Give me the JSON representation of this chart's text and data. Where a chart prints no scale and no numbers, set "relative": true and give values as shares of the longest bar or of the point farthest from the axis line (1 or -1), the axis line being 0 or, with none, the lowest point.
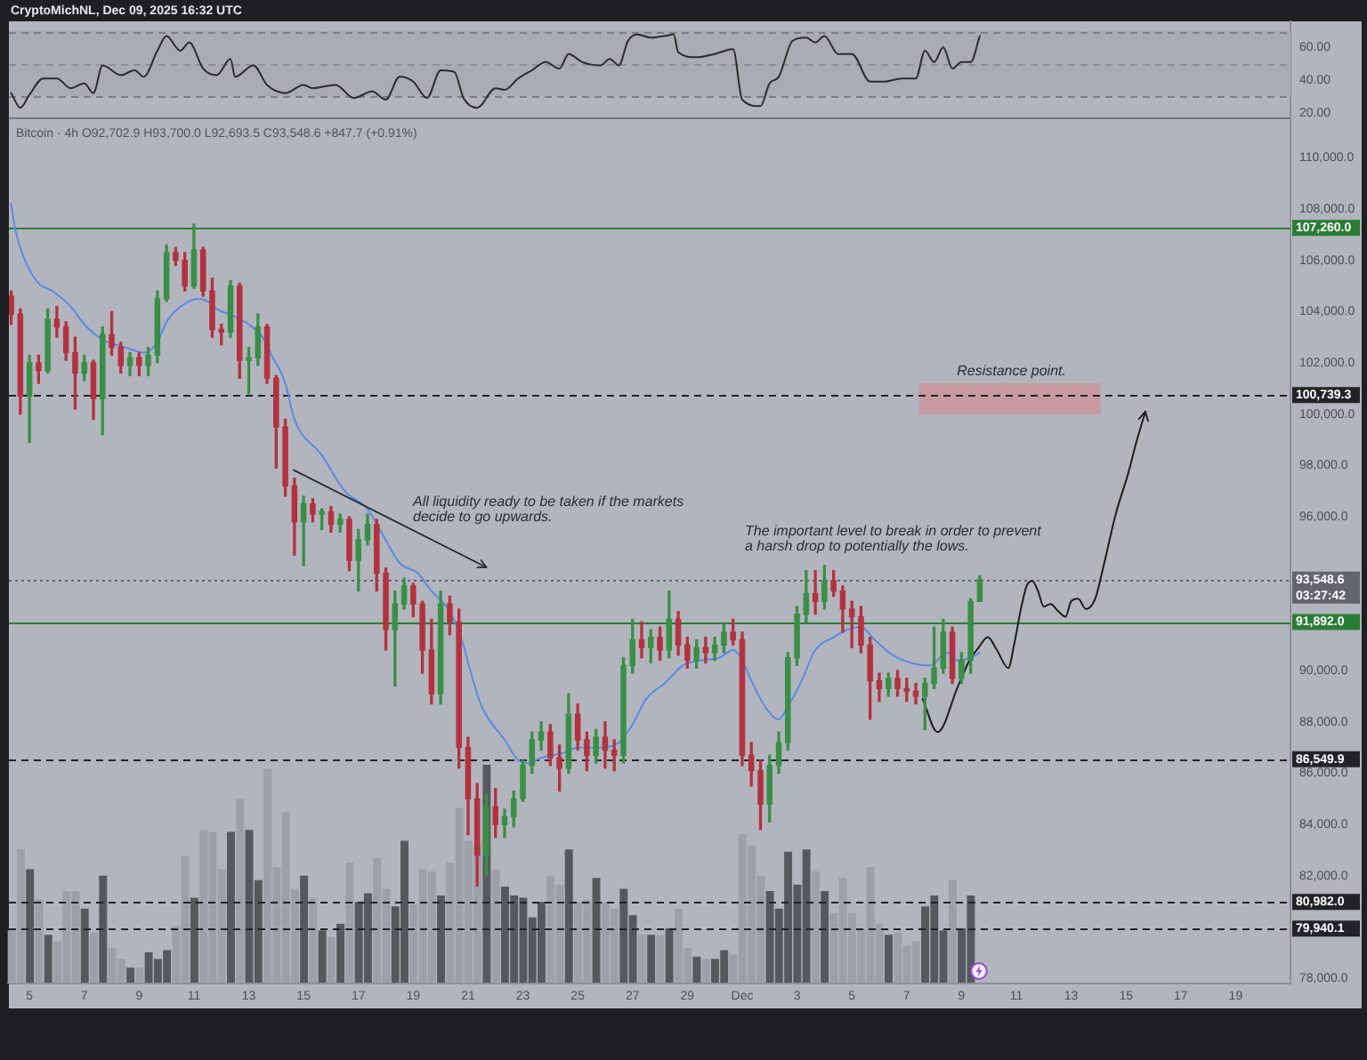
{
  "chart_data": [
    {
      "type": "line",
      "title": "CryptoMichNL, Dec 09, 2025 16:32 UTC",
      "tick_labels": "y",
      "xlim": [
        "2025-11-04T06:00",
        "2025-12-21T00:00"
      ],
      "ylim": [
        16,
        76
      ],
      "yticks": [
        {
          "value": 20,
          "label": "20.00"
        },
        {
          "value": 40,
          "label": "40.00"
        },
        {
          "value": 60,
          "label": "60.00"
        }
      ],
      "bands": [
        {
          "axis": "y",
          "from": 30,
          "to": 70,
          "color": "#a9acb4"
        }
      ],
      "ref_lines": [
        {
          "axis": "y",
          "value": 70,
          "line_style": "dashed",
          "color": "#7b7e87"
        },
        {
          "axis": "y",
          "value": 50,
          "line_style": "dashed",
          "color": "#8e9199"
        },
        {
          "axis": "y",
          "value": 30,
          "line_style": "dashed",
          "color": "#7b7e87"
        }
      ],
      "x": [
        "2025-11-04T08:00",
        "2025-11-04T16:00",
        "2025-11-05T00:00",
        "2025-11-05T12:00",
        "2025-11-06T00:00",
        "2025-11-06T12:00",
        "2025-11-07T00:00",
        "2025-11-07T08:00",
        "2025-11-07T16:00",
        "2025-11-08T08:00",
        "2025-11-08T20:00",
        "2025-11-09T04:00",
        "2025-11-09T16:00",
        "2025-11-10T00:00",
        "2025-11-10T12:00",
        "2025-11-10T20:00",
        "2025-11-11T08:00",
        "2025-11-11T20:00",
        "2025-11-12T08:00",
        "2025-11-12T12:00",
        "2025-11-13T04:00",
        "2025-11-13T16:00",
        "2025-11-14T08:00",
        "2025-11-15T00:00",
        "2025-11-15T08:00",
        "2025-11-16T04:00",
        "2025-11-16T20:00",
        "2025-11-17T12:00",
        "2025-11-18T00:00",
        "2025-11-18T12:00",
        "2025-11-19T00:00",
        "2025-11-19T12:00",
        "2025-11-20T00:00",
        "2025-11-20T12:00",
        "2025-11-20T20:00",
        "2025-11-21T08:00",
        "2025-11-22T00:00",
        "2025-11-22T08:00",
        "2025-11-22T20:00",
        "2025-11-23T08:00",
        "2025-11-23T20:00",
        "2025-11-24T08:00",
        "2025-11-24T16:00",
        "2025-11-25T04:00",
        "2025-11-25T20:00",
        "2025-11-26T04:00",
        "2025-11-26T12:00",
        "2025-11-26T20:00",
        "2025-11-27T04:00",
        "2025-11-27T16:00",
        "2025-11-28T04:00",
        "2025-11-28T12:00",
        "2025-11-28T16:00",
        "2025-11-29T08:00",
        "2025-11-30T00:00",
        "2025-11-30T16:00",
        "2025-12-01T00:00",
        "2025-12-01T16:00",
        "2025-12-02T00:00",
        "2025-12-02T08:00",
        "2025-12-02T20:00",
        "2025-12-03T08:00",
        "2025-12-03T16:00",
        "2025-12-04T00:00",
        "2025-12-04T12:00",
        "2025-12-05T00:00",
        "2025-12-05T16:00",
        "2025-12-06T04:00",
        "2025-12-06T20:00",
        "2025-12-07T08:00",
        "2025-12-07T16:00",
        "2025-12-08T00:00",
        "2025-12-08T08:00",
        "2025-12-08T16:00",
        "2025-12-09T00:00",
        "2025-12-09T08:00",
        "2025-12-09T16:00"
      ],
      "series": [
        {
          "color": "#2b2c30",
          "values": [
            32,
            23,
            31,
            41,
            41,
            35,
            38,
            32,
            49,
            43,
            46,
            42,
            58,
            67,
            58,
            63,
            47,
            43,
            53,
            42,
            49,
            37,
            32,
            37,
            35,
            37,
            29,
            33,
            28,
            42,
            39,
            29,
            46,
            45,
            29,
            23,
            35,
            34,
            41,
            46,
            51,
            47,
            56,
            51,
            49,
            53,
            49,
            64,
            68,
            66,
            67,
            68,
            57,
            54,
            56,
            59,
            28,
            24,
            38,
            42,
            64,
            66,
            63,
            67,
            56,
            56,
            39,
            39,
            41,
            41,
            58,
            51,
            60,
            47,
            51,
            51,
            67
          ]
        }
      ]
    },
    {
      "type": "candlestick",
      "title": "Bitcoin · 4h O92,702.9 H93,700.0 L92,693.5 C93,548.6 +847.7 (+0.91%)",
      "xlim": [
        "2025-11-04T06:00",
        "2025-12-21T00:00"
      ],
      "xticks": [
        {
          "value": "2025-11-05",
          "label": "5"
        },
        {
          "value": "2025-11-07",
          "label": "7"
        },
        {
          "value": "2025-11-09",
          "label": "9"
        },
        {
          "value": "2025-11-11",
          "label": "11"
        },
        {
          "value": "2025-11-13",
          "label": "13"
        },
        {
          "value": "2025-11-15",
          "label": "15"
        },
        {
          "value": "2025-11-17",
          "label": "17"
        },
        {
          "value": "2025-11-19",
          "label": "19"
        },
        {
          "value": "2025-11-21",
          "label": "21"
        },
        {
          "value": "2025-11-23",
          "label": "23"
        },
        {
          "value": "2025-11-25",
          "label": "25"
        },
        {
          "value": "2025-11-27",
          "label": "27"
        },
        {
          "value": "2025-11-29",
          "label": "29"
        },
        {
          "value": "2025-12-01",
          "label": "Dec"
        },
        {
          "value": "2025-12-03",
          "label": "3"
        },
        {
          "value": "2025-12-05",
          "label": "5"
        },
        {
          "value": "2025-12-07",
          "label": "7"
        },
        {
          "value": "2025-12-09",
          "label": "9"
        },
        {
          "value": "2025-12-11",
          "label": "11"
        },
        {
          "value": "2025-12-13",
          "label": "13"
        },
        {
          "value": "2025-12-15",
          "label": "15"
        },
        {
          "value": "2025-12-17",
          "label": "17"
        },
        {
          "value": "2025-12-19",
          "label": "19"
        }
      ],
      "ylim": [
        77800,
        111500
      ],
      "yticks": [
        {
          "value": 78000,
          "label": "78,000.0"
        },
        {
          "value": 82000,
          "label": "82,000.0"
        },
        {
          "value": 84000,
          "label": "84,000.0"
        },
        {
          "value": 86000,
          "label": "86,000.0"
        },
        {
          "value": 88000,
          "label": "88,000.0"
        },
        {
          "value": 90000,
          "label": "90,000.0"
        },
        {
          "value": 96000,
          "label": "96,000.0"
        },
        {
          "value": 98000,
          "label": "98,000.0"
        },
        {
          "value": 100000,
          "label": "100,000.0"
        },
        {
          "value": 102000,
          "label": "102,000.0"
        },
        {
          "value": 104000,
          "label": "104,000.0"
        },
        {
          "value": 106000,
          "label": "106,000.0"
        },
        {
          "value": 108000,
          "label": "108,000.0"
        },
        {
          "value": 110000,
          "label": "110,000.0"
        }
      ],
      "ref_lines": [
        {
          "axis": "y",
          "value": 107260,
          "label": "107,260.0",
          "color": "#2a7d34",
          "line_style": "solid"
        },
        {
          "axis": "y",
          "value": 100739.3,
          "label": "100,739.3",
          "color": "#222327",
          "line_style": "dashed"
        },
        {
          "axis": "y",
          "value": 93548.6,
          "label": "93,548.6\n03:27:42",
          "color": "#62656d",
          "line_style": "dotted"
        },
        {
          "axis": "y",
          "value": 91892,
          "label": "91,892.0",
          "color": "#2a7d34",
          "line_style": "solid"
        },
        {
          "axis": "y",
          "value": 86549.9,
          "label": "86,549.9",
          "color": "#222327",
          "line_style": "dashed"
        },
        {
          "axis": "y",
          "value": 80982,
          "label": "80,982.0",
          "color": "#222327",
          "line_style": "dashed"
        },
        {
          "axis": "y",
          "value": 79940.1,
          "label": "79,940.1",
          "color": "#222327",
          "line_style": "dashed"
        }
      ],
      "annotations": [
        "All liquidity ready to be taken if the markets decide to go upwards.",
        "The important level to break in order to prevent a harsh drop to potentially the lows.",
        "Resistance point."
      ],
      "x": [
        "2025-11-04T08:00",
        "2025-11-04T16:00",
        "2025-11-05T00:00",
        "2025-11-05T08:00",
        "2025-11-05T16:00",
        "2025-11-06T00:00",
        "2025-11-06T08:00",
        "2025-11-06T16:00",
        "2025-11-07T00:00",
        "2025-11-07T08:00",
        "2025-11-07T16:00",
        "2025-11-08T00:00",
        "2025-11-08T08:00",
        "2025-11-08T16:00",
        "2025-11-09T00:00",
        "2025-11-09T08:00",
        "2025-11-09T16:00",
        "2025-11-10T00:00",
        "2025-11-10T08:00",
        "2025-11-10T16:00",
        "2025-11-11T00:00",
        "2025-11-11T08:00",
        "2025-11-11T16:00",
        "2025-11-12T00:00",
        "2025-11-12T08:00",
        "2025-11-12T16:00",
        "2025-11-13T00:00",
        "2025-11-13T08:00",
        "2025-11-13T16:00",
        "2025-11-14T00:00",
        "2025-11-14T08:00",
        "2025-11-14T16:00",
        "2025-11-15T00:00",
        "2025-11-15T08:00",
        "2025-11-15T16:00",
        "2025-11-16T00:00",
        "2025-11-16T08:00",
        "2025-11-16T16:00",
        "2025-11-17T00:00",
        "2025-11-17T08:00",
        "2025-11-17T16:00",
        "2025-11-18T00:00",
        "2025-11-18T08:00",
        "2025-11-18T16:00",
        "2025-11-19T00:00",
        "2025-11-19T08:00",
        "2025-11-19T16:00",
        "2025-11-20T00:00",
        "2025-11-20T08:00",
        "2025-11-20T16:00",
        "2025-11-21T00:00",
        "2025-11-21T08:00",
        "2025-11-21T16:00",
        "2025-11-22T00:00",
        "2025-11-22T08:00",
        "2025-11-22T16:00",
        "2025-11-23T00:00",
        "2025-11-23T08:00",
        "2025-11-23T16:00",
        "2025-11-24T00:00",
        "2025-11-24T08:00",
        "2025-11-24T16:00",
        "2025-11-25T00:00",
        "2025-11-25T08:00",
        "2025-11-25T16:00",
        "2025-11-26T00:00",
        "2025-11-26T08:00",
        "2025-11-26T16:00",
        "2025-11-27T00:00",
        "2025-11-27T08:00",
        "2025-11-27T16:00",
        "2025-11-28T00:00",
        "2025-11-28T08:00",
        "2025-11-28T16:00",
        "2025-11-29T00:00",
        "2025-11-29T08:00",
        "2025-11-29T16:00",
        "2025-11-30T00:00",
        "2025-11-30T08:00",
        "2025-11-30T16:00",
        "2025-12-01T00:00",
        "2025-12-01T08:00",
        "2025-12-01T16:00",
        "2025-12-02T00:00",
        "2025-12-02T08:00",
        "2025-12-02T16:00",
        "2025-12-03T00:00",
        "2025-12-03T08:00",
        "2025-12-03T16:00",
        "2025-12-04T00:00",
        "2025-12-04T08:00",
        "2025-12-04T16:00",
        "2025-12-05T00:00",
        "2025-12-05T08:00",
        "2025-12-05T16:00",
        "2025-12-06T00:00",
        "2025-12-06T08:00",
        "2025-12-06T16:00",
        "2025-12-07T00:00",
        "2025-12-07T08:00",
        "2025-12-07T16:00",
        "2025-12-08T00:00",
        "2025-12-08T08:00",
        "2025-12-08T16:00",
        "2025-12-09T00:00",
        "2025-12-09T08:00",
        "2025-12-09T16:00"
      ],
      "ohlc": [
        [
          104600,
          104800,
          103500,
          103900
        ],
        [
          103900,
          104100,
          100000,
          100700
        ],
        [
          100700,
          102300,
          98900,
          102000
        ],
        [
          102000,
          102300,
          101200,
          101700
        ],
        [
          101700,
          104100,
          101600,
          103700
        ],
        [
          103700,
          104200,
          103000,
          103400
        ],
        [
          103400,
          103600,
          102100,
          102400
        ],
        [
          102400,
          103000,
          100200,
          101600
        ],
        [
          101600,
          102300,
          101300,
          102000
        ],
        [
          102000,
          102100,
          99800,
          100600
        ],
        [
          100600,
          103400,
          99200,
          103100
        ],
        [
          103100,
          104000,
          102300,
          102600
        ],
        [
          102600,
          102800,
          101600,
          101900
        ],
        [
          101900,
          102400,
          101500,
          102200
        ],
        [
          102200,
          102400,
          101500,
          101900
        ],
        [
          101900,
          102600,
          101500,
          102300
        ],
        [
          102300,
          104800,
          102000,
          104500
        ],
        [
          104500,
          106600,
          104400,
          106300
        ],
        [
          106300,
          106500,
          105800,
          106000
        ],
        [
          106000,
          106300,
          104800,
          105000
        ],
        [
          105000,
          107400,
          104900,
          106400
        ],
        [
          106400,
          106500,
          104600,
          104800
        ],
        [
          104800,
          105300,
          103000,
          103300
        ],
        [
          103300,
          103500,
          102700,
          103200
        ],
        [
          103200,
          105200,
          103000,
          105000
        ],
        [
          105000,
          105100,
          101400,
          102100
        ],
        [
          102100,
          102600,
          100800,
          102200
        ],
        [
          102200,
          103900,
          101900,
          103400
        ],
        [
          103400,
          103500,
          101200,
          101400
        ],
        [
          101400,
          101500,
          97900,
          99500
        ],
        [
          99500,
          99800,
          96800,
          97200
        ],
        [
          97200,
          97500,
          94500,
          95800
        ],
        [
          95800,
          96800,
          94100,
          96500
        ],
        [
          96500,
          96700,
          95800,
          96100
        ],
        [
          96100,
          96300,
          95500,
          96200
        ],
        [
          96200,
          96400,
          95400,
          95700
        ],
        [
          95700,
          96100,
          95400,
          95900
        ],
        [
          95900,
          96000,
          93900,
          94300
        ],
        [
          94300,
          95500,
          93100,
          95100
        ],
        [
          95100,
          96100,
          94900,
          95700
        ],
        [
          95700,
          95900,
          93100,
          93800
        ],
        [
          93800,
          94000,
          90800,
          91600
        ],
        [
          91600,
          93100,
          89400,
          92600
        ],
        [
          92600,
          93600,
          92400,
          93300
        ],
        [
          93300,
          93400,
          92100,
          92600
        ],
        [
          92600,
          92700,
          89900,
          90800
        ],
        [
          90800,
          92000,
          88700,
          89100
        ],
        [
          89100,
          93100,
          88700,
          92600
        ],
        [
          92600,
          92900,
          91400,
          91900
        ],
        [
          91900,
          92400,
          86200,
          87000
        ],
        [
          87000,
          87400,
          83600,
          85000
        ],
        [
          85000,
          85600,
          81600,
          82800
        ],
        [
          82800,
          85200,
          82000,
          84700
        ],
        [
          84700,
          85400,
          83500,
          84000
        ],
        [
          84000,
          84600,
          83500,
          84300
        ],
        [
          84300,
          85300,
          83900,
          85000
        ],
        [
          85000,
          86500,
          84900,
          86300
        ],
        [
          86300,
          87600,
          86000,
          87300
        ],
        [
          87300,
          88000,
          86900,
          87600
        ],
        [
          87600,
          87900,
          86300,
          86600
        ],
        [
          86600,
          87100,
          85300,
          86200
        ],
        [
          86200,
          89100,
          86000,
          88300
        ],
        [
          88300,
          88700,
          86900,
          87300
        ],
        [
          87300,
          87600,
          86100,
          86700
        ],
        [
          86700,
          87700,
          86400,
          87400
        ],
        [
          87400,
          88000,
          86200,
          86900
        ],
        [
          86900,
          87300,
          86100,
          86700
        ],
        [
          86700,
          90500,
          86400,
          90200
        ],
        [
          90200,
          92000,
          89900,
          91200
        ],
        [
          91200,
          91900,
          90500,
          90900
        ],
        [
          90900,
          91600,
          90300,
          91300
        ],
        [
          91300,
          91700,
          90400,
          90800
        ],
        [
          90800,
          93100,
          90500,
          92000
        ],
        [
          92000,
          92300,
          90600,
          91000
        ],
        [
          91000,
          91300,
          90100,
          90400
        ],
        [
          90400,
          91200,
          90100,
          90900
        ],
        [
          90900,
          91300,
          90300,
          90700
        ],
        [
          90700,
          91300,
          90400,
          91000
        ],
        [
          91000,
          91800,
          90700,
          91500
        ],
        [
          91500,
          92000,
          91000,
          91200
        ],
        [
          91200,
          91500,
          86300,
          86700
        ],
        [
          86700,
          87200,
          85500,
          86100
        ],
        [
          86100,
          86500,
          83800,
          84800
        ],
        [
          84800,
          86700,
          84100,
          86300
        ],
        [
          86300,
          87600,
          86000,
          87200
        ],
        [
          87200,
          90700,
          86900,
          90500
        ],
        [
          90500,
          92500,
          90200,
          92200
        ],
        [
          92200,
          93900,
          91900,
          93000
        ],
        [
          93000,
          93900,
          92200,
          92700
        ],
        [
          92700,
          94100,
          92400,
          93500
        ],
        [
          93500,
          93900,
          92900,
          93100
        ],
        [
          93100,
          93300,
          91500,
          92400
        ],
        [
          92400,
          92700,
          90900,
          92100
        ],
        [
          92100,
          92500,
          90700,
          91000
        ],
        [
          91000,
          91300,
          88100,
          89600
        ],
        [
          89600,
          89900,
          88800,
          89300
        ],
        [
          89300,
          89900,
          89000,
          89700
        ],
        [
          89700,
          90000,
          89000,
          89300
        ],
        [
          89300,
          89700,
          88800,
          89200
        ],
        [
          89200,
          89500,
          88700,
          89000
        ],
        [
          89000,
          89700,
          87700,
          89500
        ],
        [
          89500,
          91700,
          89300,
          90100
        ],
        [
          90100,
          92000,
          89900,
          91500
        ],
        [
          91500,
          91700,
          89500,
          89700
        ],
        [
          89700,
          90700,
          89500,
          90400
        ],
        [
          90400,
          92800,
          89900,
          92700
        ],
        [
          92702.9,
          93700,
          92693.5,
          93548.6
        ]
      ],
      "colors": [
        "#b3323f",
        "#b3323f",
        "#3a8f46",
        "#b3323f",
        "#3a8f46",
        "#b3323f",
        "#b3323f",
        "#b3323f",
        "#3a8f46",
        "#b3323f",
        "#3a8f46",
        "#b3323f",
        "#b3323f",
        "#3a8f46",
        "#b3323f",
        "#3a8f46",
        "#3a8f46",
        "#3a8f46",
        "#b3323f",
        "#b3323f",
        "#3a8f46",
        "#b3323f",
        "#b3323f",
        "#b3323f",
        "#3a8f46",
        "#b3323f",
        "#3a8f46",
        "#3a8f46",
        "#b3323f",
        "#b3323f",
        "#b3323f",
        "#b3323f",
        "#3a8f46",
        "#b3323f",
        "#3a8f46",
        "#b3323f",
        "#3a8f46",
        "#b3323f",
        "#3a8f46",
        "#3a8f46",
        "#b3323f",
        "#b3323f",
        "#3a8f46",
        "#3a8f46",
        "#b3323f",
        "#b3323f",
        "#b3323f",
        "#3a8f46",
        "#b3323f",
        "#b3323f",
        "#b3323f",
        "#b3323f",
        "#3a8f46",
        "#b3323f",
        "#3a8f46",
        "#3a8f46",
        "#3a8f46",
        "#3a8f46",
        "#3a8f46",
        "#b3323f",
        "#b3323f",
        "#3a8f46",
        "#b3323f",
        "#b3323f",
        "#3a8f46",
        "#b3323f",
        "#b3323f",
        "#3a8f46",
        "#3a8f46",
        "#b3323f",
        "#3a8f46",
        "#b3323f",
        "#3a8f46",
        "#b3323f",
        "#b3323f",
        "#3a8f46",
        "#b3323f",
        "#3a8f46",
        "#3a8f46",
        "#b3323f",
        "#b3323f",
        "#b3323f",
        "#b3323f",
        "#3a8f46",
        "#3a8f46",
        "#3a8f46",
        "#3a8f46",
        "#3a8f46",
        "#b3323f",
        "#3a8f46",
        "#b3323f",
        "#b3323f",
        "#b3323f",
        "#b3323f",
        "#b3323f",
        "#b3323f",
        "#3a8f46",
        "#b3323f",
        "#b3323f",
        "#b3323f",
        "#3a8f46",
        "#3a8f46",
        "#3a8f46",
        "#b3323f",
        "#3a8f46",
        "#3a8f46",
        "#3a8f46"
      ],
      "series": [
        {
          "type": "line",
          "color": "#5a8ae6",
          "x": [
            "2025-11-04T08:00",
            "2025-11-04T12:00",
            "2025-11-04T20:00",
            "2025-11-05T08:00",
            "2025-11-05T20:00",
            "2025-11-06T12:00",
            "2025-11-07T00:00",
            "2025-11-07T16:00",
            "2025-11-08T04:00",
            "2025-11-08T12:00",
            "2025-11-09T04:00",
            "2025-11-09T16:00",
            "2025-11-10T00:00",
            "2025-11-10T16:00",
            "2025-11-11T04:00",
            "2025-11-11T12:00",
            "2025-11-11T20:00",
            "2025-11-12T12:00",
            "2025-11-13T00:00",
            "2025-11-13T12:00",
            "2025-11-13T20:00",
            "2025-11-14T08:00",
            "2025-11-14T16:00",
            "2025-11-15T16:00",
            "2025-11-16T12:00",
            "2025-11-17T08:00",
            "2025-11-17T20:00",
            "2025-11-18T12:00",
            "2025-11-19T04:00",
            "2025-11-19T16:00",
            "2025-11-20T08:00",
            "2025-11-20T20:00",
            "2025-11-21T00:00",
            "2025-11-21T12:00",
            "2025-11-22T08:00",
            "2025-11-22T20:00",
            "2025-11-23T04:00",
            "2025-11-23T16:00",
            "2025-11-24T12:00",
            "2025-11-25T00:00",
            "2025-11-25T20:00",
            "2025-11-26T12:00",
            "2025-11-27T00:00",
            "2025-11-27T12:00",
            "2025-11-28T04:00",
            "2025-11-28T20:00",
            "2025-11-29T12:00",
            "2025-11-30T04:00",
            "2025-11-30T16:00",
            "2025-12-01T00:00",
            "2025-12-01T08:00",
            "2025-12-01T20:00",
            "2025-12-02T08:00",
            "2025-12-02T16:00",
            "2025-12-03T04:00",
            "2025-12-03T16:00",
            "2025-12-04T08:00",
            "2025-12-04T20:00",
            "2025-12-05T08:00",
            "2025-12-05T20:00",
            "2025-12-06T12:00",
            "2025-12-07T04:00",
            "2025-12-07T20:00",
            "2025-12-08T12:00",
            "2025-12-08T20:00",
            "2025-12-09T08:00",
            "2025-12-09T16:00"
          ],
          "values": [
            108200,
            107100,
            106000,
            105100,
            104800,
            104200,
            103500,
            102900,
            102700,
            102600,
            102400,
            102800,
            103600,
            104300,
            104500,
            104400,
            104100,
            103800,
            103500,
            103000,
            102300,
            101200,
            99800,
            98400,
            97000,
            96300,
            95400,
            94200,
            93800,
            93100,
            92300,
            91000,
            90300,
            88600,
            87300,
            86500,
            86400,
            86600,
            86800,
            87000,
            87000,
            87200,
            87900,
            88900,
            89500,
            90200,
            90400,
            90500,
            90800,
            90400,
            89600,
            88600,
            88100,
            88600,
            89600,
            90800,
            91300,
            91600,
            91700,
            91200,
            90600,
            90300,
            90200,
            90700,
            90400,
            90500,
            90700
          ]
        },
        {
          "type": "line",
          "color": "#1d1d20",
          "x": [
            "2025-12-07T14:00",
            "2025-12-08T03:00",
            "2025-12-08T21:00",
            "2025-12-09T07:00",
            "2025-12-09T15:00",
            "2025-12-09T23:00",
            "2025-12-10T07:00",
            "2025-12-10T17:00",
            "2025-12-10T22:00",
            "2025-12-11T04:00",
            "2025-12-11T09:00",
            "2025-12-11T14:00",
            "2025-12-11T19:00",
            "2025-12-12T00:00",
            "2025-12-12T06:00",
            "2025-12-12T13:00",
            "2025-12-12T19:00",
            "2025-12-13T00:00",
            "2025-12-13T06:00",
            "2025-12-13T13:00",
            "2025-12-13T21:00",
            "2025-12-14T05:00",
            "2025-12-14T15:00",
            "2025-12-15T02:00",
            "2025-12-15T09:00",
            "2025-12-15T17:00"
          ],
          "values": [
            88900,
            87600,
            89400,
            90400,
            90900,
            91300,
            90800,
            90100,
            91000,
            92400,
            93300,
            93500,
            93100,
            92500,
            92600,
            92300,
            92100,
            92700,
            92800,
            92400,
            92800,
            94200,
            96100,
            97700,
            98900,
            100100
          ]
        },
        {
          "type": "area",
          "color": "#c79aa2",
          "x": [
            "2025-12-07T11:00",
            "2025-12-14T02:00"
          ],
          "values": [
            null,
            null
          ],
          "lower": [
            100000,
            100000
          ],
          "upper": [
            101200,
            101200
          ]
        }
      ]
    },
    {
      "type": "bar",
      "relative": true,
      "tick_labels": false,
      "categories": [
        null,
        null,
        null,
        null,
        null,
        null,
        null,
        null,
        null,
        null,
        null,
        null,
        null,
        null,
        null,
        null,
        null,
        null,
        null,
        null,
        null,
        null,
        null,
        null,
        null,
        null,
        null,
        null,
        null,
        null,
        null,
        null,
        null,
        null,
        null,
        null,
        null,
        null,
        null,
        null,
        null,
        null,
        null,
        null,
        null,
        null,
        null,
        null,
        null,
        null,
        null,
        null,
        null,
        null,
        null,
        null,
        null,
        null,
        null,
        null,
        null,
        null,
        null,
        null,
        null,
        null,
        null,
        null,
        null,
        null,
        null,
        null,
        null,
        null,
        null,
        null,
        null,
        null,
        null,
        null,
        null,
        null,
        null,
        null,
        null,
        null,
        null,
        null,
        null,
        null,
        null,
        null,
        null,
        null,
        null,
        null,
        null,
        null,
        null,
        null,
        null,
        null,
        null,
        null,
        null,
        null
      ],
      "values": [
        0.24,
        0.61,
        0.52,
        0.38,
        0.22,
        0.19,
        0.42,
        0.42,
        0.34,
        0.23,
        0.49,
        0.16,
        0.11,
        0.07,
        0.07,
        0.14,
        0.11,
        0.15,
        0.26,
        0.58,
        0.39,
        0.7,
        0.69,
        0.52,
        0.69,
        0.84,
        0.7,
        0.47,
        0.98,
        0.53,
        0.78,
        0.43,
        0.49,
        0.39,
        0.24,
        0.21,
        0.27,
        0.55,
        0.37,
        0.41,
        0.57,
        0.43,
        0.35,
        0.65,
        0.36,
        0.52,
        0.51,
        0.4,
        0.55,
        0.8,
        0.65,
        0.64,
        1,
        0.52,
        0.44,
        0.4,
        0.39,
        0.3,
        0.37,
        0.49,
        0.45,
        0.61,
        0.37,
        0.38,
        0.48,
        0.37,
        0.34,
        0.43,
        0.31,
        0.22,
        0.22,
        0.22,
        0.25,
        0.34,
        0.16,
        0.12,
        0.11,
        0.11,
        0.15,
        0.13,
        0.68,
        0.63,
        0.49,
        0.42,
        0.34,
        0.6,
        0.45,
        0.61,
        0.51,
        0.42,
        0.32,
        0.48,
        0.32,
        0.25,
        0.53,
        0.27,
        0.22,
        0.23,
        0.17,
        0.19,
        0.35,
        0.4,
        0.24,
        0.47,
        0.25,
        0.4
      ],
      "colors": [
        "#9da0a8",
        "#9da0a8",
        "#55585f",
        "#9da0a8",
        "#55585f",
        "#9da0a8",
        "#9da0a8",
        "#9da0a8",
        "#55585f",
        "#9da0a8",
        "#55585f",
        "#9da0a8",
        "#9da0a8",
        "#55585f",
        "#9da0a8",
        "#55585f",
        "#55585f",
        "#55585f",
        "#9da0a8",
        "#9da0a8",
        "#55585f",
        "#9da0a8",
        "#9da0a8",
        "#9da0a8",
        "#55585f",
        "#9da0a8",
        "#55585f",
        "#55585f",
        "#9da0a8",
        "#9da0a8",
        "#9da0a8",
        "#9da0a8",
        "#55585f",
        "#9da0a8",
        "#55585f",
        "#9da0a8",
        "#55585f",
        "#9da0a8",
        "#55585f",
        "#55585f",
        "#9da0a8",
        "#9da0a8",
        "#55585f",
        "#55585f",
        "#9da0a8",
        "#9da0a8",
        "#9da0a8",
        "#55585f",
        "#9da0a8",
        "#9da0a8",
        "#9da0a8",
        "#9da0a8",
        "#55585f",
        "#9da0a8",
        "#55585f",
        "#55585f",
        "#55585f",
        "#55585f",
        "#55585f",
        "#9da0a8",
        "#9da0a8",
        "#55585f",
        "#9da0a8",
        "#9da0a8",
        "#55585f",
        "#9da0a8",
        "#9da0a8",
        "#55585f",
        "#55585f",
        "#9da0a8",
        "#55585f",
        "#9da0a8",
        "#55585f",
        "#9da0a8",
        "#9da0a8",
        "#55585f",
        "#9da0a8",
        "#55585f",
        "#55585f",
        "#9da0a8",
        "#9da0a8",
        "#9da0a8",
        "#9da0a8",
        "#55585f",
        "#55585f",
        "#55585f",
        "#55585f",
        "#55585f",
        "#9da0a8",
        "#55585f",
        "#9da0a8",
        "#9da0a8",
        "#9da0a8",
        "#9da0a8",
        "#9da0a8",
        "#9da0a8",
        "#55585f",
        "#9da0a8",
        "#9da0a8",
        "#9da0a8",
        "#55585f",
        "#55585f",
        "#55585f",
        "#9da0a8",
        "#55585f",
        "#55585f"
      ]
    }
  ]
}
